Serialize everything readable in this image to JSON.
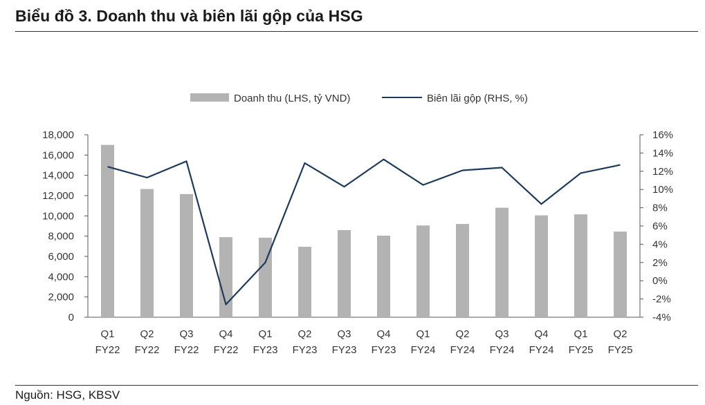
{
  "title": "Biểu đồ 3. Doanh thu và biên lãi gộp của HSG",
  "source": "Nguồn: HSG, KBSV",
  "colors": {
    "bar": "#b3b3b3",
    "line": "#1b3a5c",
    "axis": "#555555"
  },
  "chart_data": {
    "type": "bar",
    "title": "Biểu đồ 3. Doanh thu và biên lãi gộp của HSG",
    "categories": [
      [
        "Q1",
        "FY22"
      ],
      [
        "Q2",
        "FY22"
      ],
      [
        "Q3",
        "FY22"
      ],
      [
        "Q4",
        "FY22"
      ],
      [
        "Q1",
        "FY23"
      ],
      [
        "Q2",
        "FY23"
      ],
      [
        "Q3",
        "FY23"
      ],
      [
        "Q4",
        "FY23"
      ],
      [
        "Q1",
        "FY24"
      ],
      [
        "Q2",
        "FY24"
      ],
      [
        "Q3",
        "FY24"
      ],
      [
        "Q4",
        "FY24"
      ],
      [
        "Q1",
        "FY25"
      ],
      [
        "Q2",
        "FY25"
      ]
    ],
    "series": [
      {
        "name": "Doanh thu (LHS, tỷ VND)",
        "type": "bar",
        "axis": "left",
        "values": [
          17000,
          12650,
          12150,
          7900,
          7850,
          6950,
          8600,
          8050,
          9050,
          9200,
          10800,
          10050,
          10150,
          8450
        ]
      },
      {
        "name": "Biên lãi gộp (RHS, %)",
        "type": "line",
        "axis": "right",
        "values": [
          12.5,
          11.3,
          13.1,
          -2.6,
          2.0,
          12.9,
          10.3,
          13.3,
          10.5,
          12.1,
          12.4,
          8.4,
          11.8,
          12.7
        ]
      }
    ],
    "ylim_left": [
      0,
      18000
    ],
    "yticks_left": [
      "0",
      "2,000",
      "4,000",
      "6,000",
      "8,000",
      "10,000",
      "12,000",
      "14,000",
      "16,000",
      "18,000"
    ],
    "ylim_right": [
      -4,
      16
    ],
    "yticks_right": [
      "-4%",
      "-2%",
      "0%",
      "2%",
      "4%",
      "6%",
      "8%",
      "10%",
      "12%",
      "14%",
      "16%"
    ],
    "legend_position": "top-center"
  }
}
